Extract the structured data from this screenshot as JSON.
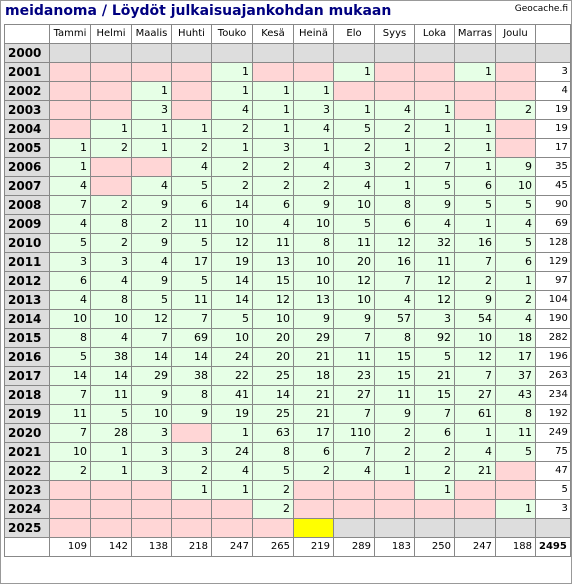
{
  "title": "meidanoma / Löydöt julkaisuajankohdan mukaan",
  "site": "Geocache.fi",
  "months": [
    "Tammi",
    "Helmi",
    "Maalis",
    "Huhti",
    "Touko",
    "Kesä",
    "Heinä",
    "Elo",
    "Syys",
    "Loka",
    "Marras",
    "Joulu"
  ],
  "rows": [
    {
      "year": "2000",
      "cells": [
        "x",
        "x",
        "x",
        "x",
        "x",
        "x",
        "x",
        "x",
        "x",
        "x",
        "x",
        "x"
      ],
      "total": ""
    },
    {
      "year": "2001",
      "cells": [
        "p",
        "p",
        "p",
        "p",
        "1",
        "p",
        "p",
        "1",
        "p",
        "p",
        "1",
        "p"
      ],
      "total": "3"
    },
    {
      "year": "2002",
      "cells": [
        "p",
        "p",
        "1",
        "p",
        "1",
        "1",
        "1",
        "p",
        "p",
        "p",
        "p",
        "p"
      ],
      "total": "4"
    },
    {
      "year": "2003",
      "cells": [
        "p",
        "p",
        "3",
        "p",
        "4",
        "1",
        "3",
        "1",
        "4",
        "1",
        "p",
        "2"
      ],
      "total": "19"
    },
    {
      "year": "2004",
      "cells": [
        "p",
        "1",
        "1",
        "1",
        "2",
        "1",
        "4",
        "5",
        "2",
        "1",
        "1",
        "p"
      ],
      "total": "19"
    },
    {
      "year": "2005",
      "cells": [
        "1",
        "2",
        "1",
        "2",
        "1",
        "3",
        "1",
        "2",
        "1",
        "2",
        "1",
        "p"
      ],
      "total": "17"
    },
    {
      "year": "2006",
      "cells": [
        "1",
        "p",
        "p",
        "4",
        "2",
        "2",
        "4",
        "3",
        "2",
        "7",
        "1",
        "9"
      ],
      "total": "35"
    },
    {
      "year": "2007",
      "cells": [
        "4",
        "p",
        "4",
        "5",
        "2",
        "2",
        "2",
        "4",
        "1",
        "5",
        "6",
        "10"
      ],
      "total": "45"
    },
    {
      "year": "2008",
      "cells": [
        "7",
        "2",
        "9",
        "6",
        "14",
        "6",
        "9",
        "10",
        "8",
        "9",
        "5",
        "5"
      ],
      "total": "90"
    },
    {
      "year": "2009",
      "cells": [
        "4",
        "8",
        "2",
        "11",
        "10",
        "4",
        "10",
        "5",
        "6",
        "4",
        "1",
        "4"
      ],
      "total": "69"
    },
    {
      "year": "2010",
      "cells": [
        "5",
        "2",
        "9",
        "5",
        "12",
        "11",
        "8",
        "11",
        "12",
        "32",
        "16",
        "5"
      ],
      "total": "128"
    },
    {
      "year": "2011",
      "cells": [
        "3",
        "3",
        "4",
        "17",
        "19",
        "13",
        "10",
        "20",
        "16",
        "11",
        "7",
        "6"
      ],
      "total": "129"
    },
    {
      "year": "2012",
      "cells": [
        "6",
        "4",
        "9",
        "5",
        "14",
        "15",
        "10",
        "12",
        "7",
        "12",
        "2",
        "1"
      ],
      "total": "97"
    },
    {
      "year": "2013",
      "cells": [
        "4",
        "8",
        "5",
        "11",
        "14",
        "12",
        "13",
        "10",
        "4",
        "12",
        "9",
        "2"
      ],
      "total": "104"
    },
    {
      "year": "2014",
      "cells": [
        "10",
        "10",
        "12",
        "7",
        "5",
        "10",
        "9",
        "9",
        "57",
        "3",
        "54",
        "4"
      ],
      "total": "190"
    },
    {
      "year": "2015",
      "cells": [
        "8",
        "4",
        "7",
        "69",
        "10",
        "20",
        "29",
        "7",
        "8",
        "92",
        "10",
        "18"
      ],
      "total": "282"
    },
    {
      "year": "2016",
      "cells": [
        "5",
        "38",
        "14",
        "14",
        "24",
        "20",
        "21",
        "11",
        "15",
        "5",
        "12",
        "17"
      ],
      "total": "196"
    },
    {
      "year": "2017",
      "cells": [
        "14",
        "14",
        "29",
        "38",
        "22",
        "25",
        "18",
        "23",
        "15",
        "21",
        "7",
        "37"
      ],
      "total": "263"
    },
    {
      "year": "2018",
      "cells": [
        "7",
        "11",
        "9",
        "8",
        "41",
        "14",
        "21",
        "27",
        "11",
        "15",
        "27",
        "43"
      ],
      "total": "234"
    },
    {
      "year": "2019",
      "cells": [
        "11",
        "5",
        "10",
        "9",
        "19",
        "25",
        "21",
        "7",
        "9",
        "7",
        "61",
        "8"
      ],
      "total": "192"
    },
    {
      "year": "2020",
      "cells": [
        "7",
        "28",
        "3",
        "p",
        "1",
        "63",
        "17",
        "110",
        "2",
        "6",
        "1",
        "11"
      ],
      "total": "249"
    },
    {
      "year": "2021",
      "cells": [
        "10",
        "1",
        "3",
        "3",
        "24",
        "8",
        "6",
        "7",
        "2",
        "2",
        "4",
        "5"
      ],
      "total": "75"
    },
    {
      "year": "2022",
      "cells": [
        "2",
        "1",
        "3",
        "2",
        "4",
        "5",
        "2",
        "4",
        "1",
        "2",
        "21",
        "p"
      ],
      "total": "47"
    },
    {
      "year": "2023",
      "cells": [
        "p",
        "p",
        "p",
        "1",
        "1",
        "2",
        "p",
        "p",
        "p",
        "1",
        "p",
        "p"
      ],
      "total": "5"
    },
    {
      "year": "2024",
      "cells": [
        "p",
        "p",
        "p",
        "p",
        "p",
        "2",
        "p",
        "p",
        "p",
        "p",
        "p",
        "1"
      ],
      "total": "3"
    },
    {
      "year": "2025",
      "cells": [
        "p",
        "p",
        "p",
        "p",
        "p",
        "p",
        "y",
        "x",
        "x",
        "x",
        "x",
        "x"
      ],
      "total": ""
    }
  ],
  "month_totals": [
    "109",
    "142",
    "138",
    "218",
    "247",
    "265",
    "219",
    "289",
    "183",
    "250",
    "247",
    "188"
  ],
  "grand_total": "2495"
}
